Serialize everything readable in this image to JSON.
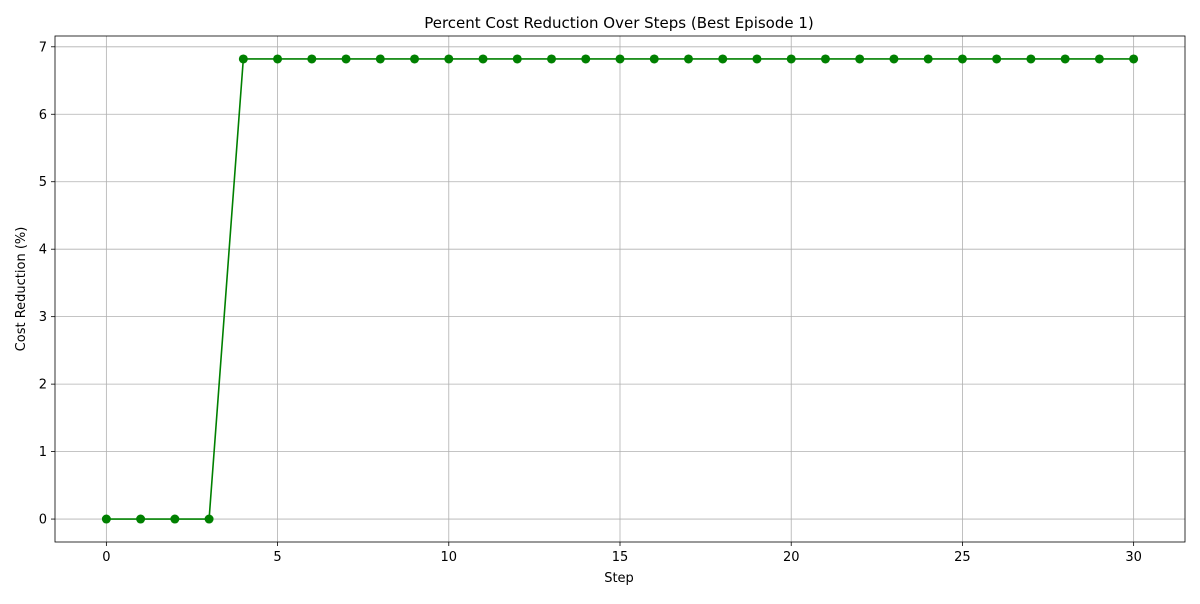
{
  "chart_data": {
    "type": "line",
    "title": "Percent Cost Reduction Over Steps (Best Episode 1)",
    "xlabel": "Step",
    "ylabel": "Cost Reduction (%)",
    "xlim": [
      -1.5,
      31.5
    ],
    "ylim": [
      -0.34,
      7.16
    ],
    "xticks": [
      0,
      5,
      10,
      15,
      20,
      25,
      30
    ],
    "yticks": [
      0,
      1,
      2,
      3,
      4,
      5,
      6,
      7
    ],
    "grid": true,
    "marker": "circle",
    "color": "#008000",
    "x": [
      0,
      1,
      2,
      3,
      4,
      5,
      6,
      7,
      8,
      9,
      10,
      11,
      12,
      13,
      14,
      15,
      16,
      17,
      18,
      19,
      20,
      21,
      22,
      23,
      24,
      25,
      26,
      27,
      28,
      29,
      30
    ],
    "y": [
      0,
      0,
      0,
      0,
      6.82,
      6.82,
      6.82,
      6.82,
      6.82,
      6.82,
      6.82,
      6.82,
      6.82,
      6.82,
      6.82,
      6.82,
      6.82,
      6.82,
      6.82,
      6.82,
      6.82,
      6.82,
      6.82,
      6.82,
      6.82,
      6.82,
      6.82,
      6.82,
      6.82,
      6.82,
      6.82
    ]
  }
}
